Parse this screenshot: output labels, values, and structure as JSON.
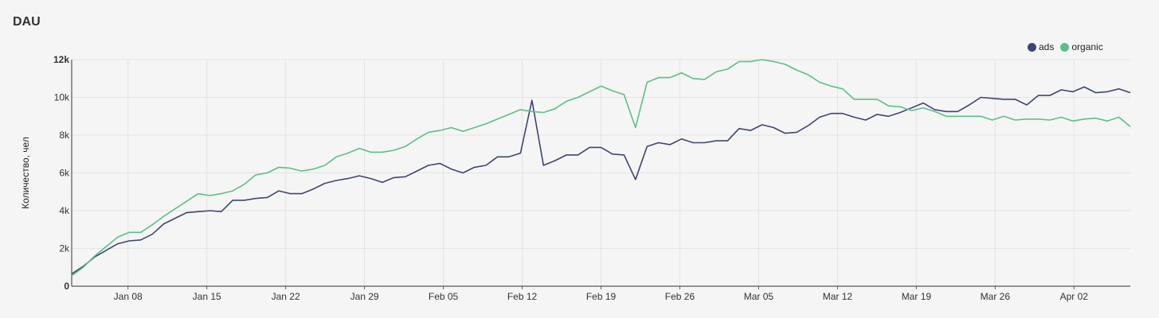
{
  "chart_data": {
    "type": "line",
    "title": "DAU",
    "ylabel": "Количество, чел",
    "ylim": [
      0,
      12000
    ],
    "y_ticks": [
      {
        "value": 0,
        "label": "0"
      },
      {
        "value": 2000,
        "label": "2k"
      },
      {
        "value": 4000,
        "label": "4k"
      },
      {
        "value": 6000,
        "label": "6k"
      },
      {
        "value": 8000,
        "label": "8k"
      },
      {
        "value": 10000,
        "label": "10k"
      },
      {
        "value": 12000,
        "label": "12k"
      }
    ],
    "x_start": "Jan 03",
    "x_end": "Apr 07",
    "x_ticks": [
      {
        "date": "Jan 08"
      },
      {
        "date": "Jan 15"
      },
      {
        "date": "Jan 22"
      },
      {
        "date": "Jan 29"
      },
      {
        "date": "Feb 05"
      },
      {
        "date": "Feb 12"
      },
      {
        "date": "Feb 19"
      },
      {
        "date": "Feb 26"
      },
      {
        "date": "Mar 05"
      },
      {
        "date": "Mar 12"
      },
      {
        "date": "Mar 19"
      },
      {
        "date": "Mar 26"
      },
      {
        "date": "Apr 02"
      }
    ],
    "grid": true,
    "legend": "top-right",
    "series": [
      {
        "name": "ads",
        "color": "#3f4573",
        "values": [
          650,
          1050,
          1550,
          1900,
          2250,
          2400,
          2450,
          2750,
          3300,
          3600,
          3900,
          3950,
          4000,
          3950,
          4550,
          4550,
          4650,
          4700,
          5050,
          4900,
          4900,
          5150,
          5450,
          5600,
          5700,
          5850,
          5700,
          5500,
          5750,
          5800,
          6100,
          6400,
          6500,
          6200,
          6000,
          6300,
          6400,
          6850,
          6850,
          7050,
          9850,
          6400,
          6650,
          6950,
          6950,
          7350,
          7350,
          7000,
          6950,
          5650,
          7400,
          7600,
          7500,
          7800,
          7600,
          7600,
          7700,
          7700,
          8350,
          8250,
          8550,
          8400,
          8100,
          8150,
          8500,
          8950,
          9150,
          9150,
          8950,
          8800,
          9100,
          9000,
          9200,
          9450,
          9700,
          9350,
          9250,
          9250,
          9600,
          10000,
          9950,
          9900,
          9900,
          9600,
          10100,
          10100,
          10400,
          10300,
          10550,
          10250,
          10300,
          10450,
          10250
        ]
      },
      {
        "name": "organic",
        "color": "#5cbf87",
        "values": [
          550,
          1000,
          1600,
          2100,
          2600,
          2850,
          2850,
          3250,
          3700,
          4100,
          4500,
          4900,
          4800,
          4900,
          5050,
          5400,
          5900,
          6000,
          6300,
          6250,
          6100,
          6200,
          6400,
          6850,
          7050,
          7300,
          7100,
          7100,
          7200,
          7400,
          7800,
          8150,
          8250,
          8400,
          8200,
          8400,
          8600,
          8850,
          9100,
          9350,
          9250,
          9200,
          9400,
          9800,
          10000,
          10300,
          10600,
          10350,
          10150,
          8400,
          10800,
          11050,
          11050,
          11300,
          11000,
          10950,
          11350,
          11500,
          11900,
          11900,
          12000,
          11900,
          11750,
          11450,
          11200,
          10800,
          10600,
          10450,
          9900,
          9900,
          9900,
          9550,
          9500,
          9300,
          9450,
          9250,
          9000,
          9000,
          9000,
          9000,
          8800,
          9000,
          8800,
          8850,
          8850,
          8800,
          8950,
          8750,
          8850,
          8900,
          8750,
          8950,
          8450
        ]
      }
    ]
  }
}
